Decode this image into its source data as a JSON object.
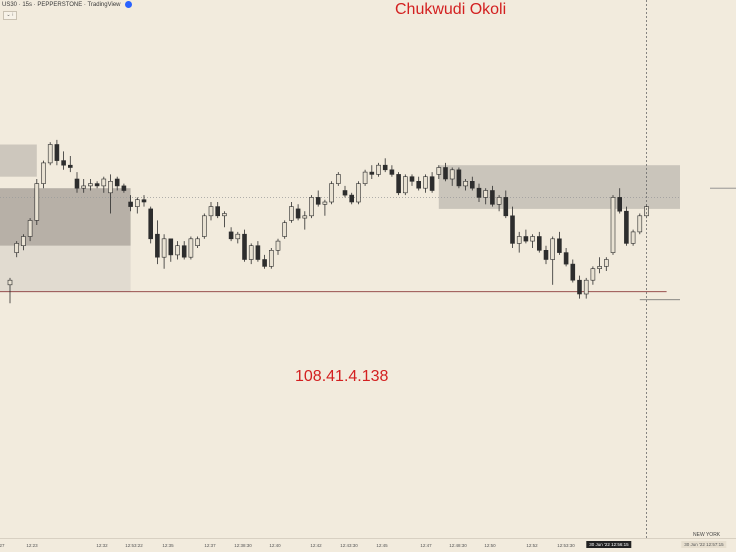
{
  "header": {
    "symbol_text": "US30 · 15s · PEPPERSTONE · TradingView",
    "collapse_glyph": "⌄ ⁝"
  },
  "watermarks": {
    "name": "Chukwudi Okoli",
    "ip": "108.41.4.138"
  },
  "timezone_label": "NEW YORK",
  "x_labels": [
    "27",
    "12:23",
    "12:32",
    "12:53:22",
    "12:35",
    "12:37",
    "12:38:30",
    "12:40",
    "12:42",
    "12:43:30",
    "12:45",
    "12:47",
    "12:48:30",
    "12:50",
    "12:52",
    "12:53:30"
  ],
  "x_label_current": "30 Jun '22  12:56:15",
  "x_label_right": "30 Jun '22  12:57:15",
  "colors": {
    "background": "#f2ebdd",
    "up_fill": "#e9e2d3",
    "down_fill": "#2d2d2d",
    "zone": "#b4b1aa",
    "watermark": "#d32020"
  },
  "chart_data": {
    "type": "candlestick",
    "title": "",
    "xlabel": "",
    "ylabel": "",
    "ylim": [
      0,
      100
    ],
    "y_axis_labels_visible": false,
    "candles": [
      {
        "o": 24,
        "h": 27,
        "l": 16,
        "c": 26
      },
      {
        "o": 38,
        "h": 43,
        "l": 36,
        "c": 42
      },
      {
        "o": 41,
        "h": 46,
        "l": 39,
        "c": 45
      },
      {
        "o": 45,
        "h": 53,
        "l": 43,
        "c": 52
      },
      {
        "o": 52,
        "h": 70,
        "l": 50,
        "c": 68
      },
      {
        "o": 68,
        "h": 78,
        "l": 66,
        "c": 77
      },
      {
        "o": 77,
        "h": 86,
        "l": 76,
        "c": 85
      },
      {
        "o": 85,
        "h": 87,
        "l": 76,
        "c": 78
      },
      {
        "o": 78,
        "h": 82,
        "l": 74,
        "c": 76
      },
      {
        "o": 76,
        "h": 80,
        "l": 73,
        "c": 75
      },
      {
        "o": 70,
        "h": 73,
        "l": 64,
        "c": 66
      },
      {
        "o": 66,
        "h": 70,
        "l": 64,
        "c": 67
      },
      {
        "o": 67,
        "h": 70,
        "l": 65,
        "c": 68
      },
      {
        "o": 68,
        "h": 69,
        "l": 66,
        "c": 67
      },
      {
        "o": 67,
        "h": 71,
        "l": 64,
        "c": 70
      },
      {
        "o": 64,
        "h": 72,
        "l": 55,
        "c": 69
      },
      {
        "o": 70,
        "h": 71,
        "l": 65,
        "c": 67
      },
      {
        "o": 67,
        "h": 68,
        "l": 64,
        "c": 65
      },
      {
        "o": 60,
        "h": 63,
        "l": 56,
        "c": 58
      },
      {
        "o": 58,
        "h": 62,
        "l": 55,
        "c": 61
      },
      {
        "o": 61,
        "h": 63,
        "l": 58,
        "c": 60
      },
      {
        "o": 57,
        "h": 58,
        "l": 42,
        "c": 44
      },
      {
        "o": 46,
        "h": 52,
        "l": 33,
        "c": 36
      },
      {
        "o": 36,
        "h": 46,
        "l": 31,
        "c": 44
      },
      {
        "o": 44,
        "h": 44,
        "l": 34,
        "c": 37
      },
      {
        "o": 37,
        "h": 43,
        "l": 35,
        "c": 41
      },
      {
        "o": 41,
        "h": 43,
        "l": 35,
        "c": 36
      },
      {
        "o": 36,
        "h": 45,
        "l": 35,
        "c": 44
      },
      {
        "o": 41,
        "h": 45,
        "l": 40,
        "c": 44
      },
      {
        "o": 45,
        "h": 55,
        "l": 44,
        "c": 54
      },
      {
        "o": 54,
        "h": 60,
        "l": 52,
        "c": 58
      },
      {
        "o": 58,
        "h": 60,
        "l": 53,
        "c": 54
      },
      {
        "o": 54,
        "h": 56,
        "l": 49,
        "c": 55
      },
      {
        "o": 47,
        "h": 49,
        "l": 43,
        "c": 44
      },
      {
        "o": 44,
        "h": 47,
        "l": 42,
        "c": 46
      },
      {
        "o": 46,
        "h": 48,
        "l": 34,
        "c": 35
      },
      {
        "o": 35,
        "h": 42,
        "l": 33,
        "c": 41
      },
      {
        "o": 41,
        "h": 43,
        "l": 34,
        "c": 35
      },
      {
        "o": 35,
        "h": 37,
        "l": 31,
        "c": 32
      },
      {
        "o": 32,
        "h": 40,
        "l": 31,
        "c": 39
      },
      {
        "o": 39,
        "h": 44,
        "l": 37,
        "c": 43
      },
      {
        "o": 45,
        "h": 52,
        "l": 44,
        "c": 51
      },
      {
        "o": 52,
        "h": 60,
        "l": 51,
        "c": 58
      },
      {
        "o": 57,
        "h": 59,
        "l": 52,
        "c": 53
      },
      {
        "o": 53,
        "h": 56,
        "l": 48,
        "c": 54
      },
      {
        "o": 54,
        "h": 63,
        "l": 53,
        "c": 62
      },
      {
        "o": 62,
        "h": 65,
        "l": 58,
        "c": 59
      },
      {
        "o": 59,
        "h": 61,
        "l": 54,
        "c": 60
      },
      {
        "o": 60,
        "h": 69,
        "l": 59,
        "c": 68
      },
      {
        "o": 68,
        "h": 73,
        "l": 67,
        "c": 72
      },
      {
        "o": 65,
        "h": 67,
        "l": 62,
        "c": 63
      },
      {
        "o": 63,
        "h": 64,
        "l": 59,
        "c": 60
      },
      {
        "o": 60,
        "h": 69,
        "l": 59,
        "c": 68
      },
      {
        "o": 68,
        "h": 74,
        "l": 67,
        "c": 73
      },
      {
        "o": 73,
        "h": 76,
        "l": 70,
        "c": 72
      },
      {
        "o": 72,
        "h": 77,
        "l": 71,
        "c": 76
      },
      {
        "o": 76,
        "h": 79,
        "l": 73,
        "c": 74
      },
      {
        "o": 74,
        "h": 76,
        "l": 71,
        "c": 72
      },
      {
        "o": 72,
        "h": 73,
        "l": 63,
        "c": 64
      },
      {
        "o": 64,
        "h": 72,
        "l": 63,
        "c": 71
      },
      {
        "o": 71,
        "h": 72,
        "l": 67,
        "c": 69
      },
      {
        "o": 69,
        "h": 71,
        "l": 65,
        "c": 66
      },
      {
        "o": 66,
        "h": 72,
        "l": 64,
        "c": 71
      },
      {
        "o": 71,
        "h": 73,
        "l": 64,
        "c": 65
      },
      {
        "o": 72,
        "h": 76,
        "l": 70,
        "c": 75
      },
      {
        "o": 75,
        "h": 77,
        "l": 69,
        "c": 70
      },
      {
        "o": 70,
        "h": 75,
        "l": 67,
        "c": 74
      },
      {
        "o": 74,
        "h": 75,
        "l": 66,
        "c": 67
      },
      {
        "o": 67,
        "h": 70,
        "l": 65,
        "c": 69
      },
      {
        "o": 69,
        "h": 71,
        "l": 65,
        "c": 66
      },
      {
        "o": 66,
        "h": 68,
        "l": 60,
        "c": 62
      },
      {
        "o": 62,
        "h": 66,
        "l": 59,
        "c": 65
      },
      {
        "o": 65,
        "h": 67,
        "l": 58,
        "c": 59
      },
      {
        "o": 59,
        "h": 63,
        "l": 56,
        "c": 62
      },
      {
        "o": 62,
        "h": 65,
        "l": 53,
        "c": 54
      },
      {
        "o": 54,
        "h": 58,
        "l": 40,
        "c": 42
      },
      {
        "o": 42,
        "h": 47,
        "l": 38,
        "c": 45
      },
      {
        "o": 45,
        "h": 48,
        "l": 42,
        "c": 43
      },
      {
        "o": 43,
        "h": 46,
        "l": 40,
        "c": 45
      },
      {
        "o": 45,
        "h": 47,
        "l": 38,
        "c": 39
      },
      {
        "o": 39,
        "h": 41,
        "l": 33,
        "c": 35
      },
      {
        "o": 35,
        "h": 45,
        "l": 24,
        "c": 44
      },
      {
        "o": 44,
        "h": 47,
        "l": 37,
        "c": 38
      },
      {
        "o": 38,
        "h": 40,
        "l": 32,
        "c": 33
      },
      {
        "o": 33,
        "h": 35,
        "l": 25,
        "c": 26
      },
      {
        "o": 26,
        "h": 28,
        "l": 18,
        "c": 20
      },
      {
        "o": 20,
        "h": 27,
        "l": 18,
        "c": 26
      },
      {
        "o": 26,
        "h": 32,
        "l": 24,
        "c": 31
      },
      {
        "o": 31,
        "h": 36,
        "l": 29,
        "c": 32
      },
      {
        "o": 32,
        "h": 36,
        "l": 30,
        "c": 35
      },
      {
        "o": 38,
        "h": 63,
        "l": 37,
        "c": 62
      },
      {
        "o": 62,
        "h": 66,
        "l": 55,
        "c": 56
      },
      {
        "o": 56,
        "h": 58,
        "l": 41,
        "c": 42
      },
      {
        "o": 42,
        "h": 48,
        "l": 41,
        "c": 47
      },
      {
        "o": 47,
        "h": 55,
        "l": 46,
        "c": 54
      },
      {
        "o": 54,
        "h": 59,
        "l": 53,
        "c": 58
      }
    ],
    "zones": [
      {
        "from_idx": -3,
        "to_idx": 4,
        "top": 85,
        "bottom": 71,
        "style": "light"
      },
      {
        "from_idx": -2,
        "to_idx": 18,
        "top": 66,
        "bottom": 41,
        "style": "dark"
      },
      {
        "from_idx": -2,
        "to_idx": 18,
        "top": 41,
        "bottom": 21,
        "style": "faint"
      },
      {
        "from_idx": 64,
        "to_idx": 100,
        "top": 76,
        "bottom": 57,
        "style": "mid"
      }
    ],
    "lines": [
      {
        "y": 21,
        "from_idx": -3,
        "to_idx": 98,
        "style": "solid",
        "color": "#8b3a3a"
      },
      {
        "y": 62,
        "from_idx": -3,
        "to_idx": 100,
        "style": "dotted",
        "color": "#9a9a9a"
      },
      {
        "y": 17.5,
        "from_idx": 94,
        "to_idx": 100,
        "style": "solid",
        "color": "#666666"
      }
    ],
    "cursor_idx": 95,
    "current_price_marker": 66
  }
}
